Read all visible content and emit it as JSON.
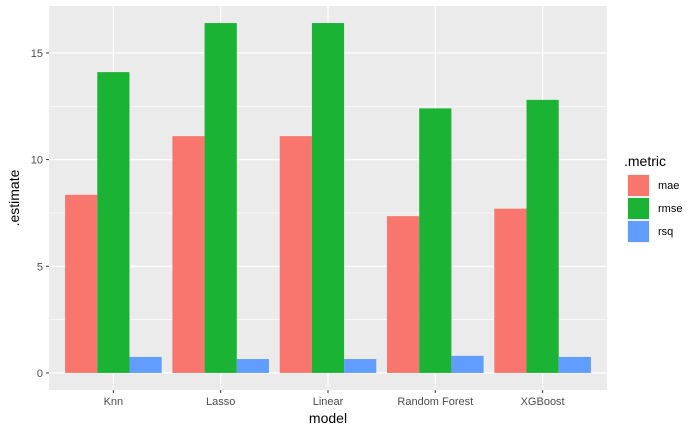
{
  "chart_data": {
    "type": "bar",
    "xlabel": "model",
    "ylabel": ".estimate",
    "categories": [
      "Knn",
      "Lasso",
      "Linear",
      "Random Forest",
      "XGBoost"
    ],
    "ylim": [
      -0.8,
      17.2
    ],
    "yticks": [
      0,
      5,
      10,
      15
    ],
    "grid": true,
    "legend": {
      "title": ".metric",
      "position": "right"
    },
    "series": [
      {
        "name": "mae",
        "color": "#F8766D",
        "values": [
          8.35,
          11.1,
          11.1,
          7.35,
          7.7
        ]
      },
      {
        "name": "rmse",
        "color": "#1BB334",
        "values": [
          14.1,
          16.4,
          16.4,
          12.4,
          12.8
        ]
      },
      {
        "name": "rsq",
        "color": "#619CFF",
        "values": [
          0.75,
          0.65,
          0.65,
          0.8,
          0.75
        ]
      }
    ]
  }
}
